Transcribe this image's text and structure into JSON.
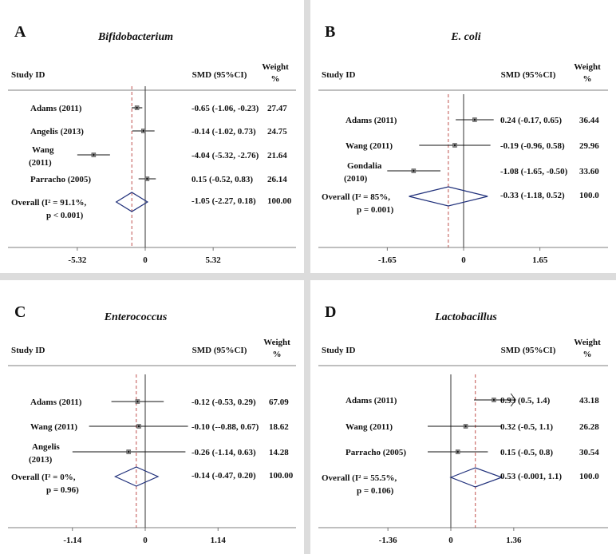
{
  "chart_data": [
    {
      "type": "forest",
      "panel_letter": "A",
      "title": "Bifidobacterium",
      "header_study": "Study ID",
      "header_smd": "SMD (95%CI)",
      "header_weight": [
        "Weight",
        "%"
      ],
      "xlim": [
        -5.32,
        5.32
      ],
      "ticks": [
        "-5.32",
        "0",
        "5.32"
      ],
      "tick_values": [
        -5.32,
        0,
        5.32
      ],
      "studies": [
        {
          "label": [
            "Adams (2011)"
          ],
          "est": -0.65,
          "lo": -1.06,
          "hi": -0.23,
          "ci_text": "-0.65 (-1.06, -0.23)",
          "weight": "27.47"
        },
        {
          "label": [
            "Angelis (2013)"
          ],
          "est": -0.14,
          "lo": -1.02,
          "hi": 0.73,
          "ci_text": "-0.14 (-1.02, 0.73)",
          "weight": "24.75"
        },
        {
          "label": [
            "Wang",
            "(2011)"
          ],
          "est": -4.04,
          "lo": -5.32,
          "hi": -2.76,
          "ci_text": "-4.04 (-5.32, -2.76)",
          "weight": "21.64"
        },
        {
          "label": [
            "Parracho (2005)"
          ],
          "est": 0.15,
          "lo": -0.52,
          "hi": 0.83,
          "ci_text": "0.15 (-0.52, 0.83)",
          "weight": "26.14"
        }
      ],
      "overall": {
        "label": [
          "Overall (I² = 91.1%,",
          "p < 0.001)"
        ],
        "est": -1.05,
        "lo": -2.27,
        "hi": 0.18,
        "ci_text": "-1.05 (-2.27, 0.18)",
        "weight": "100.00"
      }
    },
    {
      "type": "forest",
      "panel_letter": "B",
      "title": "E. coli",
      "header_study": "Study ID",
      "header_smd": "SMD (95%CI)",
      "header_weight": [
        "Weight",
        "%"
      ],
      "xlim": [
        -1.65,
        1.65
      ],
      "ticks": [
        "-1.65",
        "0",
        "1.65"
      ],
      "tick_values": [
        -1.65,
        0,
        1.65
      ],
      "studies": [
        {
          "label": [
            "Adams (2011)"
          ],
          "est": 0.24,
          "lo": -0.17,
          "hi": 0.65,
          "ci_text": "0.24 (-0.17, 0.65)",
          "weight": "36.44"
        },
        {
          "label": [
            "Wang (2011)"
          ],
          "est": -0.19,
          "lo": -0.96,
          "hi": 0.58,
          "ci_text": "-0.19 (-0.96, 0.58)",
          "weight": "29.96"
        },
        {
          "label": [
            "Gondalia",
            "(2010)"
          ],
          "est": -1.08,
          "lo": -1.65,
          "hi": -0.5,
          "ci_text": "-1.08 (-1.65, -0.50)",
          "weight": "33.60"
        }
      ],
      "overall": {
        "label": [
          "Overall (I² = 85%,",
          "p = 0.001)"
        ],
        "est": -0.33,
        "lo": -1.18,
        "hi": 0.52,
        "ci_text": "-0.33 (-1.18, 0.52)",
        "weight": "100.0"
      }
    },
    {
      "type": "forest",
      "panel_letter": "C",
      "title": "Enterococcus",
      "header_study": "Study ID",
      "header_smd": "SMD (95%CI)",
      "header_weight": [
        "Weight",
        "%"
      ],
      "xlim": [
        -1.14,
        1.14
      ],
      "ticks": [
        "-1.14",
        "0",
        "1.14"
      ],
      "tick_values": [
        -1.14,
        0,
        1.14
      ],
      "studies": [
        {
          "label": [
            "Adams (2011)"
          ],
          "est": -0.12,
          "lo": -0.53,
          "hi": 0.29,
          "ci_text": "-0.12 (-0.53, 0.29)",
          "weight": "67.09"
        },
        {
          "label": [
            "Wang (2011)"
          ],
          "est": -0.1,
          "lo": -0.88,
          "hi": 0.67,
          "ci_text": "-0.10 (--0.88, 0.67)",
          "weight": "18.62"
        },
        {
          "label": [
            "Angelis",
            "(2013)"
          ],
          "est": -0.26,
          "lo": -1.14,
          "hi": 0.63,
          "ci_text": "-0.26 (-1.14, 0.63)",
          "weight": "14.28"
        }
      ],
      "overall": {
        "label": [
          "Overall (I² = 0%,",
          "p = 0.96)"
        ],
        "est": -0.14,
        "lo": -0.47,
        "hi": 0.2,
        "ci_text": "-0.14 (-0.47, 0.20)",
        "weight": "100.00"
      }
    },
    {
      "type": "forest",
      "panel_letter": "D",
      "title": "Lactobacillus",
      "header_study": "Study ID",
      "header_smd": "SMD (95%CI)",
      "header_weight": [
        "Weight",
        "%"
      ],
      "xlim": [
        -1.36,
        1.36
      ],
      "ticks": [
        "-1.36",
        "0",
        "1.36"
      ],
      "tick_values": [
        -1.36,
        0,
        1.36
      ],
      "studies": [
        {
          "label": [
            "Adams (2011)"
          ],
          "est": 0.93,
          "lo": 0.5,
          "hi": 1.4,
          "ci_text": "0.93 (0.5, 1.4)",
          "weight": "43.18"
        },
        {
          "label": [
            "Wang (2011)"
          ],
          "est": 0.32,
          "lo": -0.5,
          "hi": 1.1,
          "ci_text": "0.32 (-0.5, 1.1)",
          "weight": "26.28"
        },
        {
          "label": [
            "Parracho (2005)"
          ],
          "est": 0.15,
          "lo": -0.5,
          "hi": 0.8,
          "ci_text": "0.15 (-0.5, 0.8)",
          "weight": "30.54"
        }
      ],
      "overall": {
        "label": [
          "Overall (I² = 55.5%,",
          "p = 0.106)"
        ],
        "est": 0.53,
        "lo": -0.001,
        "hi": 1.1,
        "ci_text": "0.53 (-0.001, 1.1)",
        "weight": "100.0"
      }
    }
  ]
}
